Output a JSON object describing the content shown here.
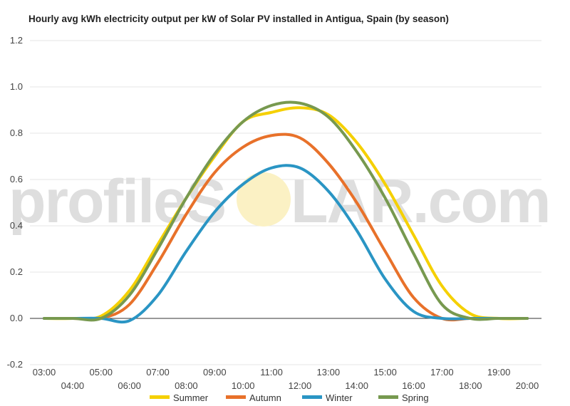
{
  "chart_data": {
    "type": "line",
    "title": "Hourly avg kWh electricity output per kW of Solar PV installed in Antigua, Spain (by season)",
    "xlabel": "",
    "ylabel": "",
    "ylim": [
      -0.2,
      1.2
    ],
    "yticks": [
      1.2,
      1.0,
      0.8,
      0.6,
      0.4,
      0.2,
      0.0,
      -0.2
    ],
    "ytick_labels": [
      "1.2",
      "1.0",
      "0.8",
      "0.6",
      "0.4",
      "0.2",
      "0.0",
      "-0.2"
    ],
    "xlim": [
      3,
      20
    ],
    "x_tick_labels": [
      "03:00",
      "04:00",
      "05:00",
      "06:00",
      "07:00",
      "08:00",
      "09:00",
      "10:00",
      "11:00",
      "12:00",
      "13:00",
      "14:00",
      "15:00",
      "16:00",
      "17:00",
      "18:00",
      "19:00",
      "20:00"
    ],
    "x": [
      3,
      4,
      5,
      6,
      7,
      8,
      9,
      10,
      11,
      12,
      13,
      14,
      15,
      16,
      17,
      18,
      19,
      20
    ],
    "grid": true,
    "legend_position": "bottom",
    "series": [
      {
        "name": "Summer",
        "color": "#f5d000",
        "values": [
          0.0,
          0.0,
          0.01,
          0.12,
          0.32,
          0.52,
          0.7,
          0.85,
          0.89,
          0.91,
          0.88,
          0.76,
          0.58,
          0.36,
          0.14,
          0.02,
          0.0,
          0.0
        ]
      },
      {
        "name": "Autumn",
        "color": "#e8712a",
        "values": [
          0.0,
          0.0,
          0.0,
          0.06,
          0.24,
          0.45,
          0.63,
          0.74,
          0.79,
          0.78,
          0.67,
          0.5,
          0.29,
          0.09,
          0.0,
          0.0,
          0.0,
          0.0
        ]
      },
      {
        "name": "Winter",
        "color": "#2a95c4",
        "values": [
          0.0,
          0.0,
          0.0,
          -0.01,
          0.1,
          0.29,
          0.46,
          0.58,
          0.65,
          0.65,
          0.55,
          0.38,
          0.17,
          0.03,
          0.0,
          0.0,
          0.0,
          0.0
        ]
      },
      {
        "name": "Spring",
        "color": "#77994f",
        "values": [
          0.0,
          0.0,
          0.0,
          0.1,
          0.3,
          0.52,
          0.71,
          0.85,
          0.92,
          0.93,
          0.87,
          0.72,
          0.52,
          0.28,
          0.06,
          0.0,
          0.0,
          0.0
        ]
      }
    ]
  },
  "watermark": {
    "text_left": "profileS",
    "text_right": "LAR.com"
  }
}
